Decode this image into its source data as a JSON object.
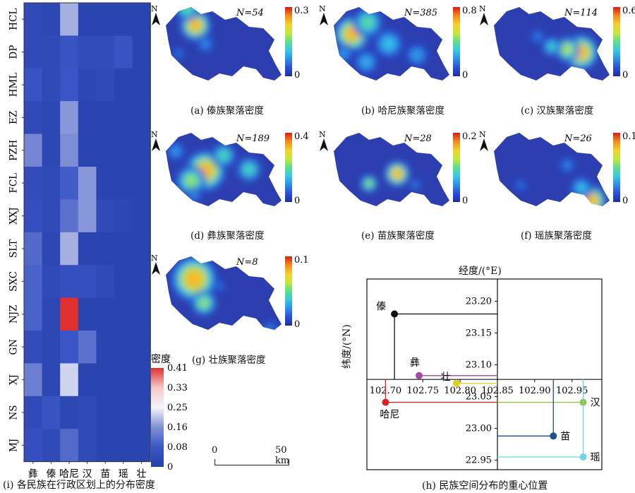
{
  "colorbar_stops": [
    "#1f2f9e",
    "#2a4fd8",
    "#2f8fe8",
    "#36c8e6",
    "#5ee08a",
    "#c7e83a",
    "#f5d02a",
    "#f48a1e",
    "#d41c12"
  ],
  "heatmap_stops": [
    "#2540a8",
    "#3b56c6",
    "#8090d6",
    "#f4f4fa",
    "#f6c8c8",
    "#e03030"
  ],
  "maps": [
    {
      "id": "a",
      "n_label": "N=54",
      "max": "0.33",
      "min": "0",
      "caption": "(a) 傣族聚落密度"
    },
    {
      "id": "b",
      "n_label": "N=385",
      "max": "0.82",
      "min": "0",
      "caption": "(b) 哈尼族聚落密度"
    },
    {
      "id": "c",
      "n_label": "N=114",
      "max": "0.64",
      "min": "0",
      "caption": "(c) 汉族聚落密度"
    },
    {
      "id": "d",
      "n_label": "N=189",
      "max": "0.41",
      "min": "0",
      "caption": "(d) 彝族聚落密度"
    },
    {
      "id": "e",
      "n_label": "N=28",
      "max": "0.23",
      "min": "0",
      "caption": "(e) 苗族聚落密度"
    },
    {
      "id": "f",
      "n_label": "N=26",
      "max": "0.12",
      "min": "0",
      "caption": "(f) 瑶族聚落密度"
    },
    {
      "id": "g",
      "n_label": "N=8",
      "max": "0.18",
      "min": "0",
      "caption": "(g) 壮族聚落密度"
    }
  ],
  "north_label": "N",
  "scale_bar": {
    "zero": "0",
    "end": "50 km"
  },
  "chart_data": [
    {
      "type": "heatmap",
      "title": "",
      "caption": "(i) 各民族在行政区划上的分布密度",
      "legend_title": "密度",
      "legend_ticks": [
        "0.41",
        "0.33",
        "0.25",
        "0.16",
        "0.08",
        "0"
      ],
      "value_range": [
        0,
        0.41
      ],
      "x_categories": [
        "彝",
        "傣",
        "哈尼",
        "汉",
        "苗",
        "瑶",
        "壮"
      ],
      "y_categories": [
        "HCL",
        "DP",
        "HML",
        "EZ",
        "PZH",
        "FCL",
        "XXJ",
        "SLT",
        "SXC",
        "NJZ",
        "GN",
        "XJ",
        "NS",
        "MJ"
      ],
      "values": [
        [
          0.04,
          0.03,
          0.19,
          0.02,
          0.02,
          0.02,
          0.02
        ],
        [
          0.04,
          0.04,
          0.07,
          0.05,
          0.05,
          0.07,
          0.02
        ],
        [
          0.07,
          0.04,
          0.08,
          0.03,
          0.04,
          0.02,
          0.02
        ],
        [
          0.04,
          0.03,
          0.17,
          0.02,
          0.02,
          0.02,
          0.02
        ],
        [
          0.15,
          0.03,
          0.16,
          0.02,
          0.02,
          0.02,
          0.02
        ],
        [
          0.05,
          0.04,
          0.09,
          0.17,
          0.02,
          0.02,
          0.02
        ],
        [
          0.06,
          0.04,
          0.12,
          0.17,
          0.04,
          0.03,
          0.02
        ],
        [
          0.11,
          0.03,
          0.19,
          0.02,
          0.02,
          0.02,
          0.02
        ],
        [
          0.1,
          0.04,
          0.06,
          0.06,
          0.04,
          0.02,
          0.02
        ],
        [
          0.1,
          0.03,
          0.41,
          0.02,
          0.02,
          0.02,
          0.02
        ],
        [
          0.05,
          0.03,
          0.08,
          0.12,
          0.02,
          0.02,
          0.02
        ],
        [
          0.14,
          0.03,
          0.22,
          0.02,
          0.02,
          0.02,
          0.02
        ],
        [
          0.04,
          0.07,
          0.03,
          0.04,
          0.02,
          0.02,
          0.02
        ],
        [
          0.06,
          0.04,
          0.11,
          0.04,
          0.02,
          0.02,
          0.02
        ]
      ]
    },
    {
      "type": "scatter",
      "title": "",
      "caption": "(h) 民族空间分布的重心位置",
      "xlabel": "经度/(°E)",
      "ylabel": "纬度/(°N)",
      "xlim": [
        102.675,
        102.99
      ],
      "ylim": [
        22.935,
        23.235
      ],
      "x_ticks": [
        "102.70",
        "102.75",
        "102.80",
        "102.85",
        "102.90",
        "102.95"
      ],
      "y_ticks": [
        "23.20",
        "23.15",
        "23.10",
        "23.05",
        "23.00",
        "22.95"
      ],
      "axis_cross": {
        "x": 102.85,
        "y": 23.077
      },
      "points": [
        {
          "name": "傣",
          "x": 102.712,
          "y": 23.18,
          "color": "#111111"
        },
        {
          "name": "彝",
          "x": 102.745,
          "y": 23.083,
          "color": "#a24aa6"
        },
        {
          "name": "壮",
          "x": 102.795,
          "y": 23.071,
          "color": "#d8d21e"
        },
        {
          "name": "哈尼",
          "x": 102.7,
          "y": 23.041,
          "color": "#e02020"
        },
        {
          "name": "汉",
          "x": 102.965,
          "y": 23.041,
          "color": "#8cc63f"
        },
        {
          "name": "苗",
          "x": 102.925,
          "y": 22.988,
          "color": "#1f4e8c"
        },
        {
          "name": "瑶",
          "x": 102.965,
          "y": 22.955,
          "color": "#6fd3e3"
        }
      ]
    }
  ]
}
